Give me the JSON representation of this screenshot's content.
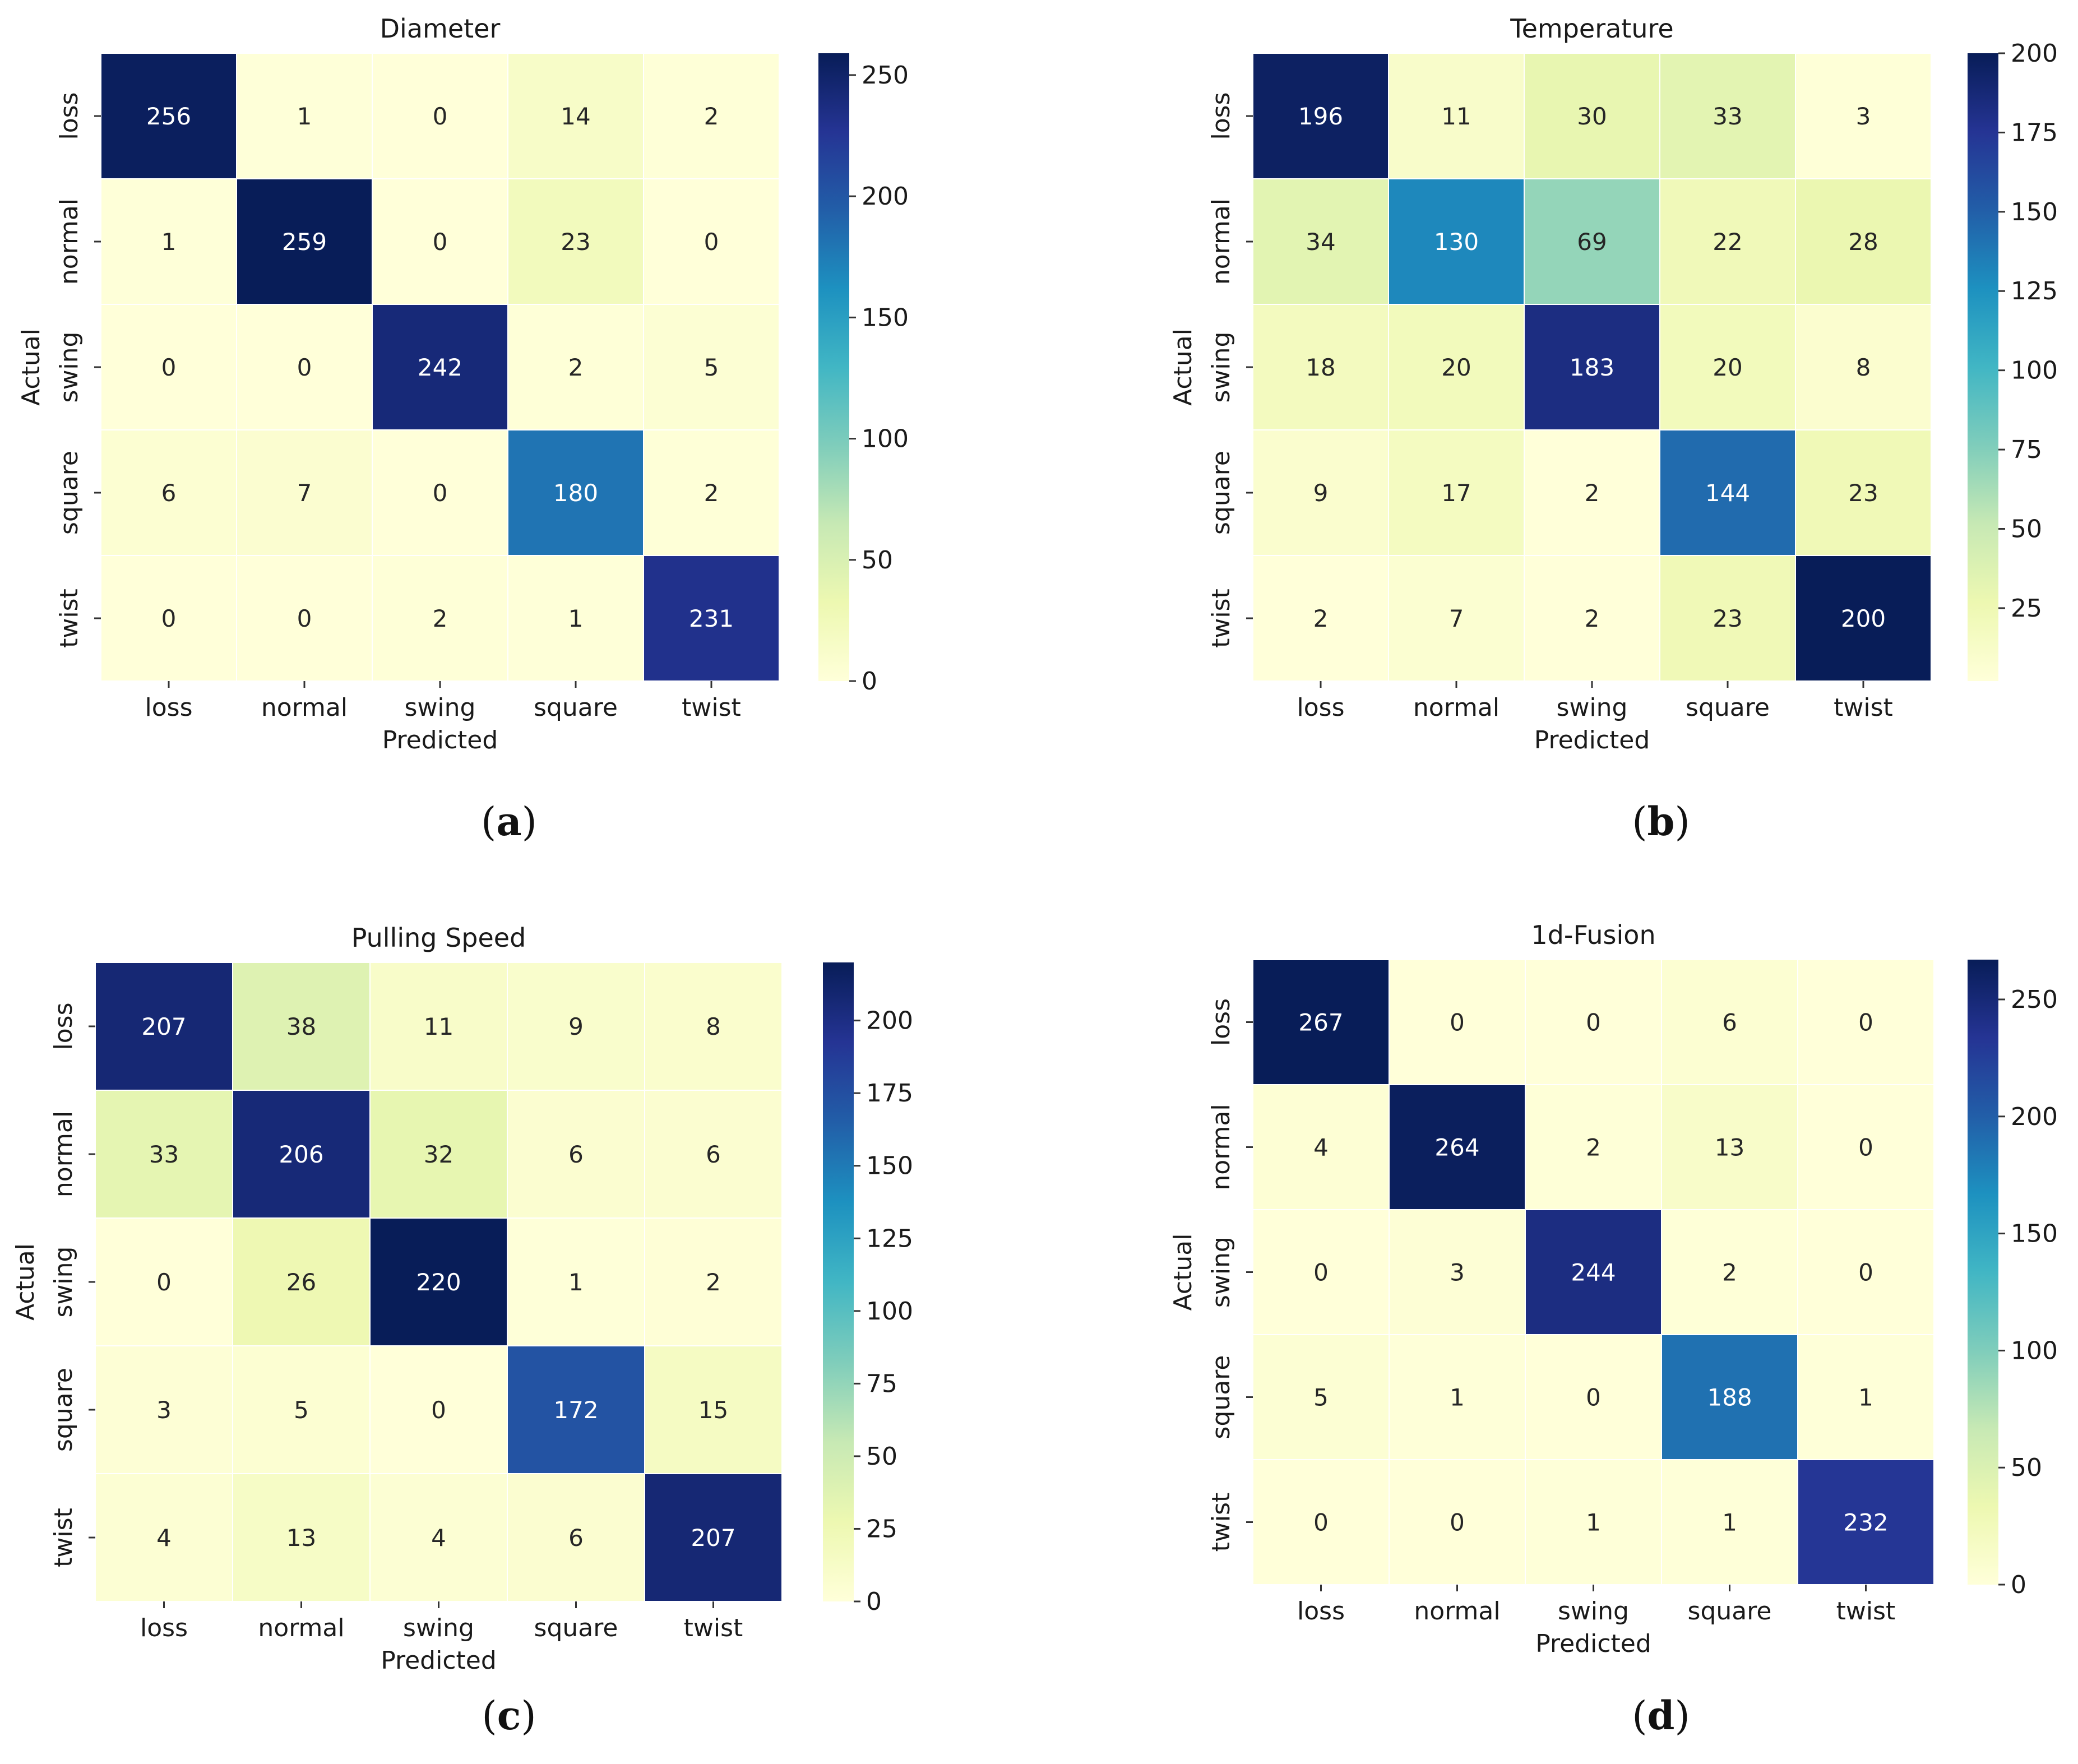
{
  "figure": {
    "panel_tag_open": "(",
    "panel_tag_close": ")"
  },
  "chart_data": [
    {
      "type": "heatmap",
      "panel_label": "a",
      "title": "Diameter",
      "xlabel": "Predicted",
      "ylabel": "Actual",
      "x_categories": [
        "loss",
        "normal",
        "swing",
        "square",
        "twist"
      ],
      "y_categories": [
        "loss",
        "normal",
        "swing",
        "square",
        "twist"
      ],
      "values": [
        [
          256,
          1,
          0,
          14,
          2
        ],
        [
          1,
          259,
          0,
          23,
          0
        ],
        [
          0,
          0,
          242,
          2,
          5
        ],
        [
          6,
          7,
          0,
          180,
          2
        ],
        [
          0,
          0,
          2,
          1,
          231
        ]
      ],
      "colorbar": {
        "min": 0,
        "max": 259,
        "ticks": [
          0,
          50,
          100,
          150,
          200,
          250
        ]
      }
    },
    {
      "type": "heatmap",
      "panel_label": "b",
      "title": "Temperature",
      "xlabel": "Predicted",
      "ylabel": "Actual",
      "x_categories": [
        "loss",
        "normal",
        "swing",
        "square",
        "twist"
      ],
      "y_categories": [
        "loss",
        "normal",
        "swing",
        "square",
        "twist"
      ],
      "values": [
        [
          196,
          11,
          30,
          33,
          3
        ],
        [
          34,
          130,
          69,
          22,
          28
        ],
        [
          18,
          20,
          183,
          20,
          8
        ],
        [
          9,
          17,
          2,
          144,
          23
        ],
        [
          2,
          7,
          2,
          23,
          200
        ]
      ],
      "colorbar": {
        "min": 2,
        "max": 200,
        "ticks": [
          25,
          50,
          75,
          100,
          125,
          150,
          175,
          200
        ]
      }
    },
    {
      "type": "heatmap",
      "panel_label": "c",
      "title": "Pulling Speed",
      "xlabel": "Predicted",
      "ylabel": "Actual",
      "x_categories": [
        "loss",
        "normal",
        "swing",
        "square",
        "twist"
      ],
      "y_categories": [
        "loss",
        "normal",
        "swing",
        "square",
        "twist"
      ],
      "values": [
        [
          207,
          38,
          11,
          9,
          8
        ],
        [
          33,
          206,
          32,
          6,
          6
        ],
        [
          0,
          26,
          220,
          1,
          2
        ],
        [
          3,
          5,
          0,
          172,
          15
        ],
        [
          4,
          13,
          4,
          6,
          207
        ]
      ],
      "colorbar": {
        "min": 0,
        "max": 220,
        "ticks": [
          0,
          25,
          50,
          75,
          100,
          125,
          150,
          175,
          200
        ]
      }
    },
    {
      "type": "heatmap",
      "panel_label": "d",
      "title": "1d-Fusion",
      "xlabel": "Predicted",
      "ylabel": "Actual",
      "x_categories": [
        "loss",
        "normal",
        "swing",
        "square",
        "twist"
      ],
      "y_categories": [
        "loss",
        "normal",
        "swing",
        "square",
        "twist"
      ],
      "values": [
        [
          267,
          0,
          0,
          6,
          0
        ],
        [
          4,
          264,
          2,
          13,
          0
        ],
        [
          0,
          3,
          244,
          2,
          0
        ],
        [
          5,
          1,
          0,
          188,
          1
        ],
        [
          0,
          0,
          1,
          1,
          232
        ]
      ],
      "colorbar": {
        "min": 0,
        "max": 267,
        "ticks": [
          0,
          50,
          100,
          150,
          200,
          250
        ]
      }
    }
  ],
  "colormap": {
    "name": "YlGnBu",
    "stops": [
      "#ffffd9",
      "#edf8b1",
      "#c7e9b4",
      "#7fcdbb",
      "#41b6c4",
      "#1d91c0",
      "#225ea8",
      "#253494",
      "#081d58"
    ]
  }
}
